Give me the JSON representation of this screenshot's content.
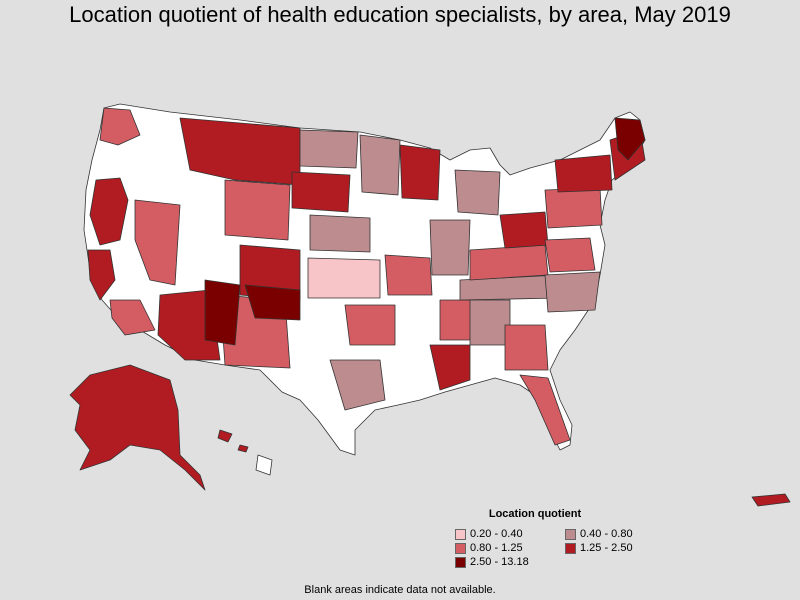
{
  "title": "Location quotient of health education specialists, by area, May 2019",
  "legend": {
    "title": "Location quotient",
    "items": [
      {
        "label": "0.20 - 0.40",
        "color": "#f7c4c7"
      },
      {
        "label": "0.40 - 0.80",
        "color": "#bc8c8f"
      },
      {
        "label": "0.80 - 1.25",
        "color": "#d45d63"
      },
      {
        "label": "1.25 - 2.50",
        "color": "#b01c22"
      },
      {
        "label": "2.50 - 13.18",
        "color": "#7a0000"
      }
    ]
  },
  "note": "Blank areas indicate data not available.",
  "colors": {
    "background": "#e0e0e0",
    "no_data": "#ffffff",
    "border": "#333333"
  }
}
